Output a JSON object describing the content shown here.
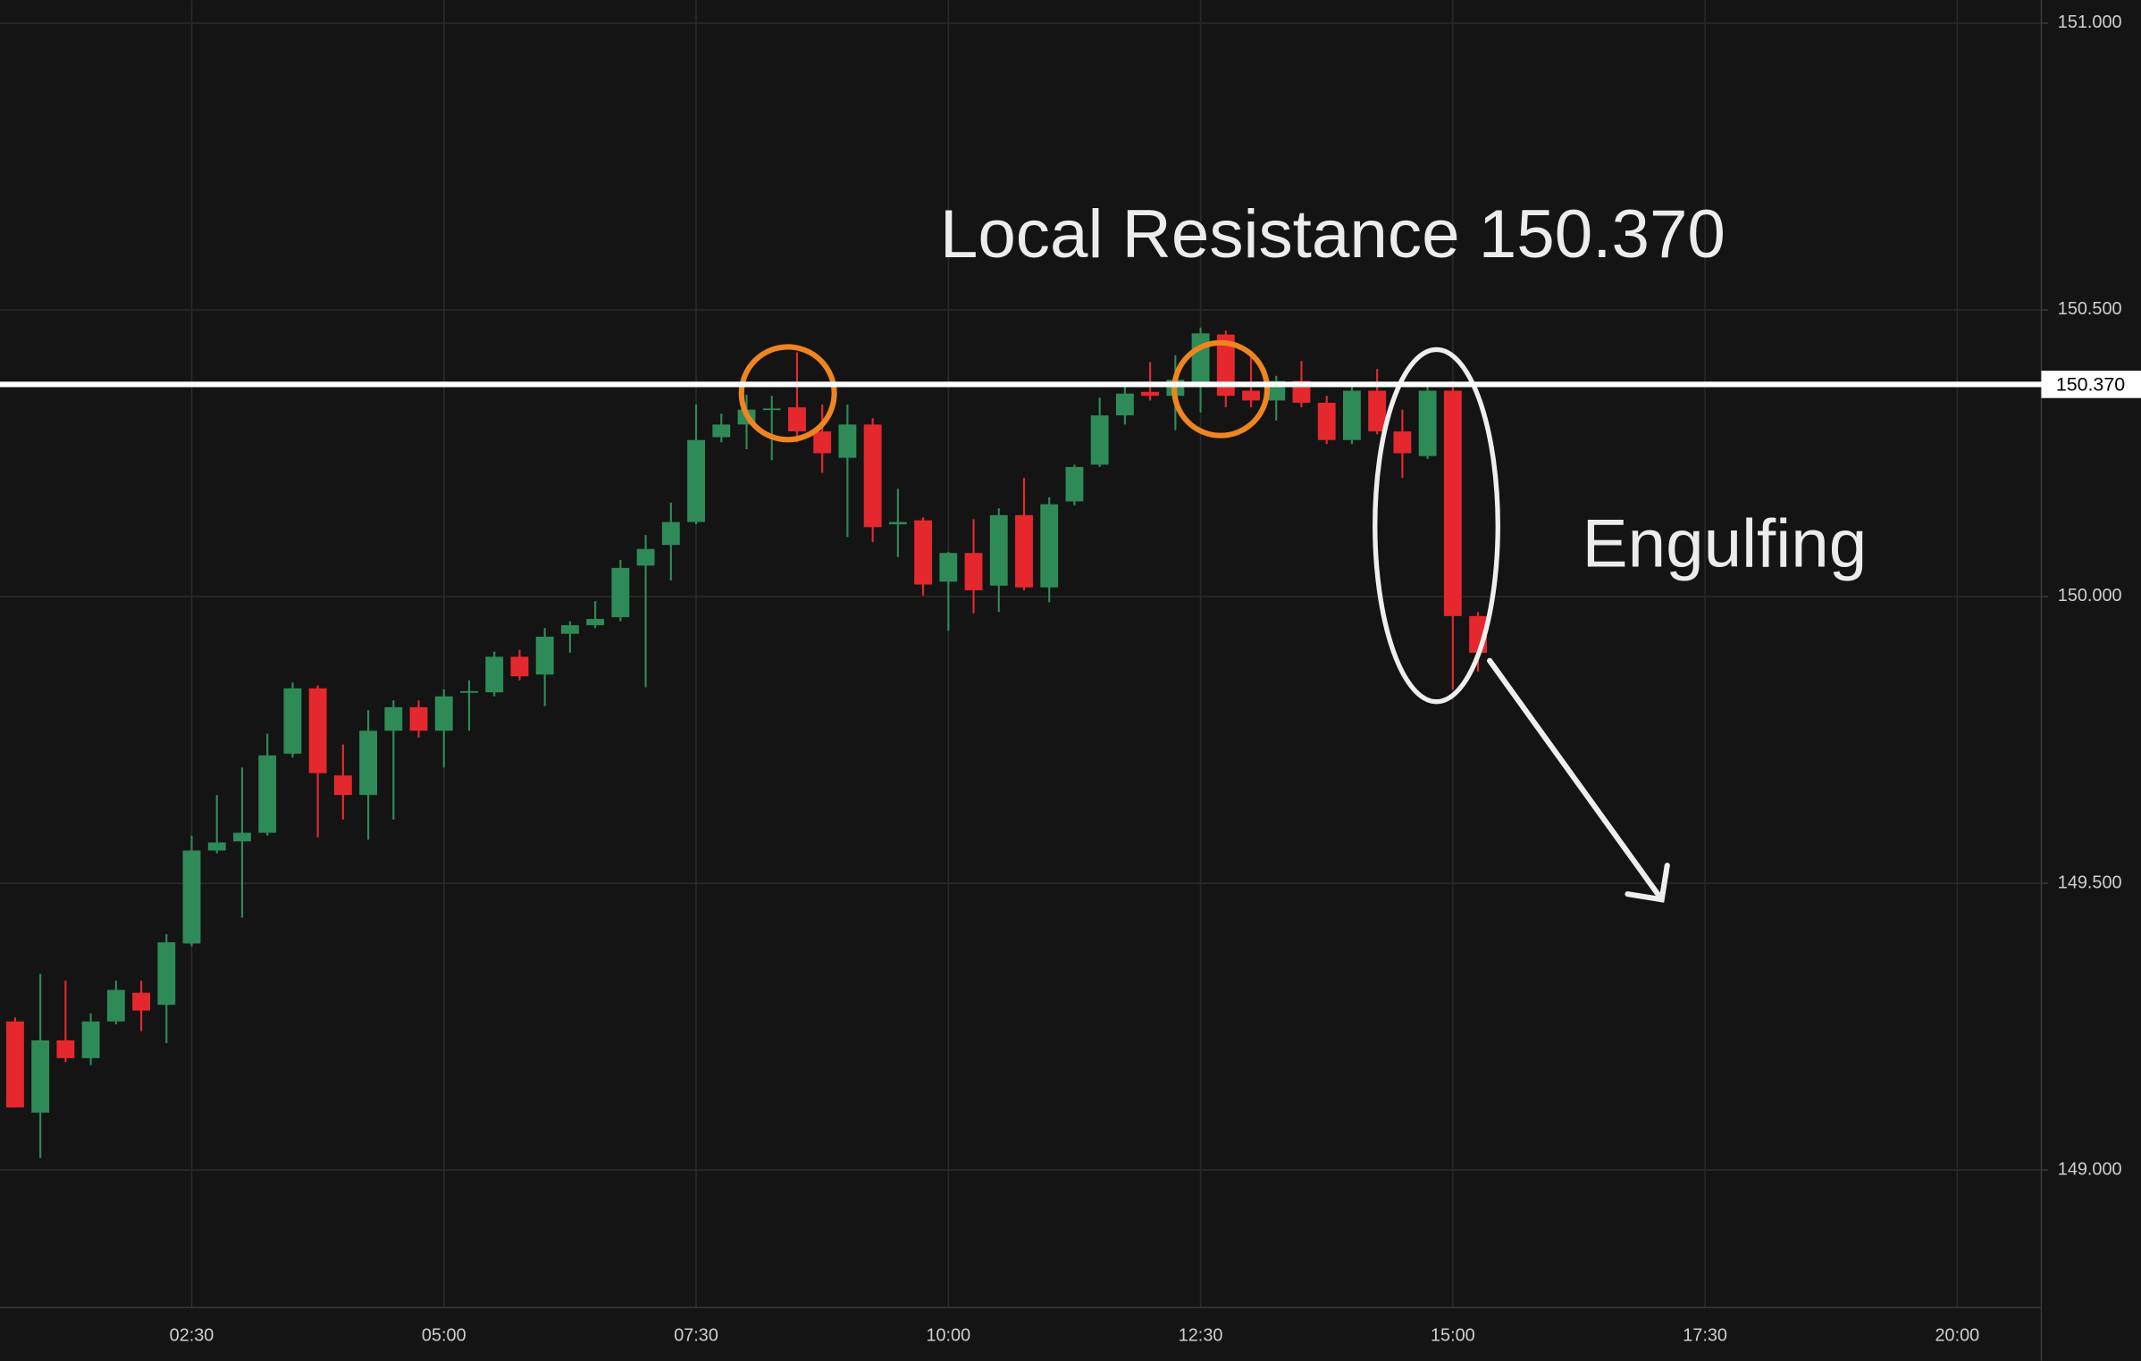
{
  "chart_data": {
    "type": "candlestick",
    "up_color": "#2e8b57",
    "down_color": "#e5282e",
    "grid": true,
    "annotations": [
      "Local Resistance 150.370",
      "Engulfing"
    ],
    "resistance": {
      "value": 150.37,
      "label": "150.370"
    },
    "xlim": [
      "00:36",
      "20:50"
    ],
    "xticks": [
      "02:30",
      "05:00",
      "07:30",
      "10:00",
      "12:30",
      "15:00",
      "17:30",
      "20:00"
    ],
    "ylim": [
      148.76,
      151.04
    ],
    "yticks": [
      {
        "value": 149,
        "label": "149.000"
      },
      {
        "value": 149.5,
        "label": "149.500"
      },
      {
        "value": 150,
        "label": "150.000"
      },
      {
        "value": 150.5,
        "label": "150.500"
      },
      {
        "value": 151,
        "label": "151.000"
      }
    ],
    "x": [
      "00:45",
      "01:00",
      "01:15",
      "01:30",
      "01:45",
      "02:00",
      "02:15",
      "02:30",
      "02:45",
      "03:00",
      "03:15",
      "03:30",
      "03:45",
      "04:00",
      "04:15",
      "04:30",
      "04:45",
      "05:00",
      "05:15",
      "05:30",
      "05:45",
      "06:00",
      "06:15",
      "06:30",
      "06:45",
      "07:00",
      "07:15",
      "07:30",
      "07:45",
      "08:00",
      "08:15",
      "08:30",
      "08:45",
      "09:00",
      "09:15",
      "09:30",
      "09:45",
      "10:00",
      "10:15",
      "10:30",
      "10:45",
      "11:00",
      "11:15",
      "11:30",
      "11:45",
      "12:00",
      "12:15",
      "12:30",
      "12:45",
      "13:00",
      "13:15",
      "13:30",
      "13:45",
      "14:00",
      "14:15",
      "14:30",
      "14:45",
      "15:00",
      "15:15"
    ],
    "open": [
      149.259,
      149.1,
      149.226,
      149.195,
      149.259,
      149.309,
      149.288,
      149.395,
      149.557,
      149.573,
      149.588,
      149.726,
      149.84,
      149.688,
      149.654,
      149.766,
      149.807,
      149.766,
      149.833,
      149.833,
      149.895,
      149.864,
      149.935,
      149.95,
      149.964,
      150.054,
      150.09,
      150.13,
      150.278,
      150.3,
      150.326,
      150.33,
      150.288,
      150.242,
      150.3,
      150.126,
      150.133,
      150.026,
      150.076,
      150.019,
      150.142,
      150.016,
      150.166,
      150.23,
      150.316,
      150.357,
      150.35,
      150.373,
      150.457,
      150.359,
      150.342,
      150.376,
      150.338,
      150.273,
      150.359,
      150.288,
      150.245,
      150.359,
      149.966
    ],
    "high": [
      149.266,
      149.342,
      149.33,
      149.273,
      149.33,
      149.33,
      149.411,
      149.583,
      149.654,
      149.702,
      149.761,
      149.85,
      149.845,
      149.742,
      149.802,
      149.819,
      149.819,
      149.838,
      149.854,
      149.904,
      149.907,
      149.945,
      149.957,
      149.992,
      150.064,
      150.107,
      150.164,
      150.335,
      150.319,
      150.352,
      150.35,
      150.426,
      150.335,
      150.335,
      150.311,
      150.188,
      150.138,
      150.078,
      150.135,
      150.154,
      150.207,
      150.173,
      150.23,
      150.347,
      150.371,
      150.409,
      150.421,
      150.469,
      150.464,
      150.428,
      150.385,
      150.411,
      150.35,
      150.369,
      150.397,
      150.326,
      150.371,
      150.373,
      149.973
    ],
    "low": [
      149.109,
      149.021,
      149.188,
      149.183,
      149.254,
      149.242,
      149.221,
      149.39,
      149.552,
      149.44,
      149.583,
      149.719,
      149.58,
      149.611,
      149.576,
      149.611,
      149.754,
      149.702,
      149.766,
      149.826,
      149.854,
      149.809,
      149.902,
      149.945,
      149.957,
      149.842,
      150.028,
      150.126,
      150.269,
      150.257,
      150.238,
      150.269,
      150.216,
      150.104,
      150.095,
      150.069,
      150.002,
      149.94,
      149.971,
      149.973,
      150.011,
      149.99,
      150.159,
      150.226,
      150.3,
      150.342,
      150.29,
      150.321,
      150.33,
      150.33,
      150.307,
      150.33,
      150.266,
      150.266,
      150.283,
      150.207,
      150.24,
      149.838,
      149.869
    ],
    "close": [
      149.109,
      149.226,
      149.195,
      149.259,
      149.314,
      149.278,
      149.397,
      149.557,
      149.571,
      149.588,
      149.723,
      149.84,
      149.692,
      149.654,
      149.766,
      149.807,
      149.766,
      149.826,
      149.835,
      149.895,
      149.861,
      149.93,
      149.95,
      149.961,
      150.05,
      150.083,
      150.13,
      150.273,
      150.3,
      150.326,
      150.328,
      150.288,
      150.25,
      150.3,
      150.121,
      150.13,
      150.021,
      150.076,
      150.011,
      150.142,
      150.016,
      150.161,
      150.226,
      150.316,
      150.354,
      150.35,
      150.378,
      150.459,
      150.35,
      150.342,
      150.376,
      150.338,
      150.273,
      150.359,
      150.288,
      150.25,
      150.359,
      149.966,
      149.902
    ]
  }
}
